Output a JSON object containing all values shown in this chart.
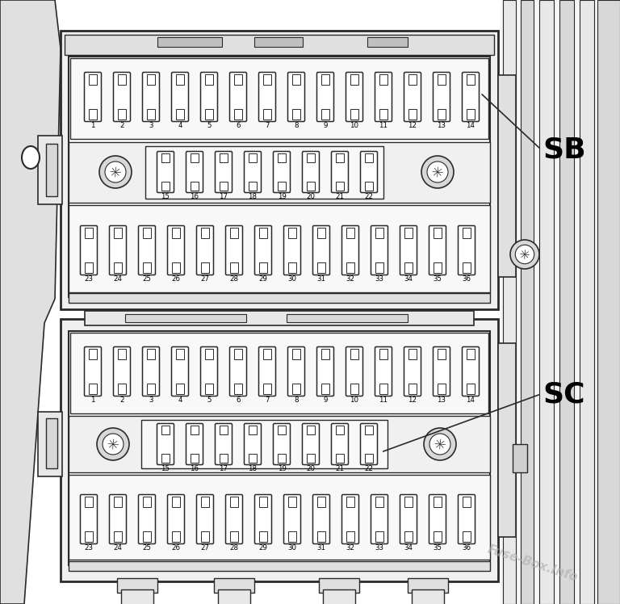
{
  "bg_color": "#ffffff",
  "line_color": "#2a2a2a",
  "text_color": "#000000",
  "watermark": "Fuse-Box.Info",
  "SB_label": "SB",
  "SC_label": "SC",
  "sb_row1": [
    1,
    2,
    3,
    4,
    5,
    6,
    7,
    8,
    9,
    10,
    11,
    12,
    13,
    14
  ],
  "sb_row2": [
    15,
    16,
    17,
    18,
    19,
    20,
    21,
    22
  ],
  "sb_row3": [
    23,
    24,
    25,
    26,
    27,
    28,
    29,
    30,
    31,
    32,
    33,
    34,
    35,
    36
  ],
  "sc_row1": [
    1,
    2,
    3,
    4,
    5,
    6,
    7,
    8,
    9,
    10,
    11,
    12,
    13,
    14
  ],
  "sc_row2": [
    15,
    16,
    17,
    18,
    19,
    20,
    21,
    22
  ],
  "sc_row3": [
    23,
    24,
    25,
    26,
    27,
    28,
    29,
    30,
    31,
    32,
    33,
    34,
    35,
    36
  ]
}
